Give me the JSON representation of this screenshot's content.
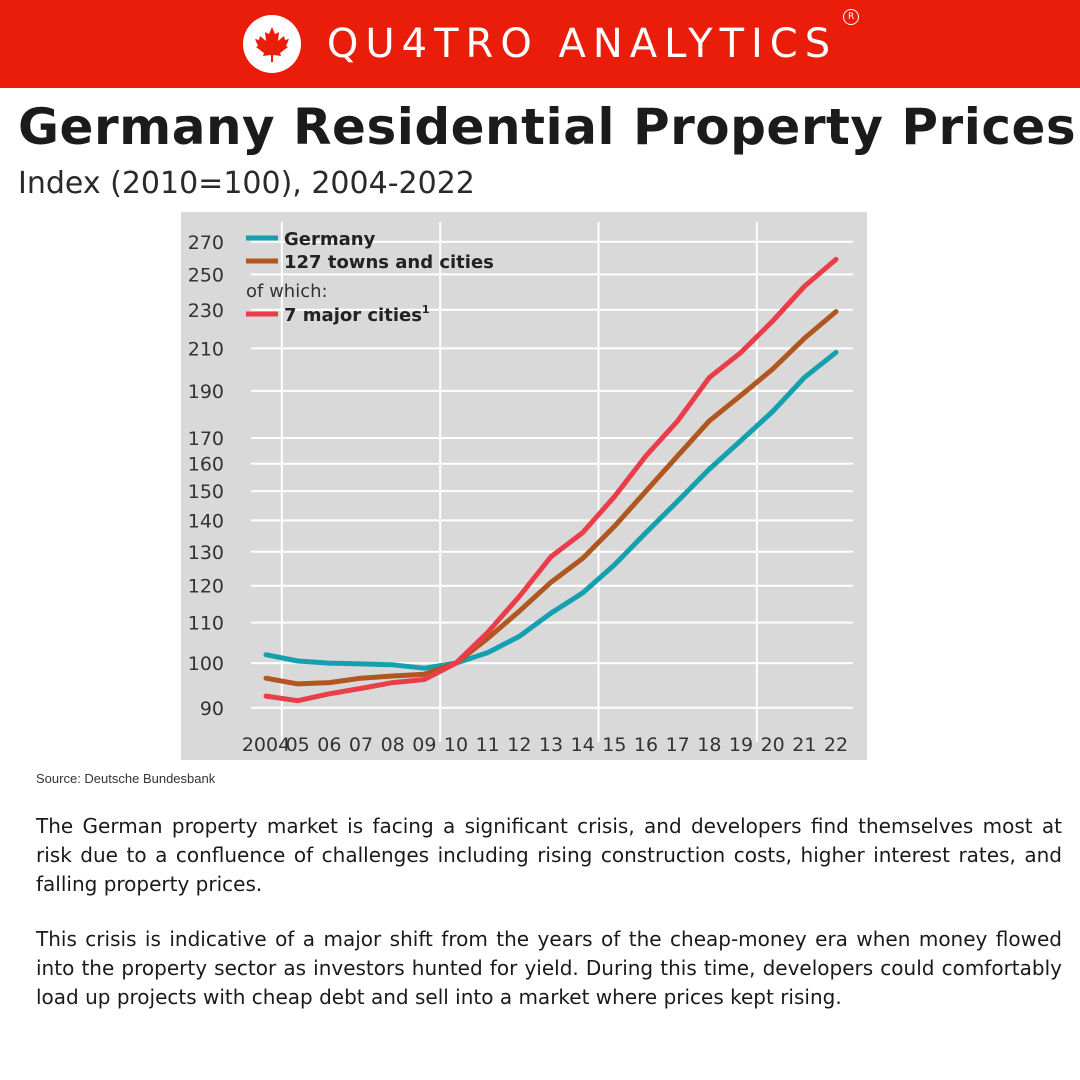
{
  "brand": {
    "name": "QU4TRO ANALYTICS",
    "registered": "R",
    "logo_icon": "maple-leaf-icon",
    "banner_color": "#ea1c0a"
  },
  "header": {
    "title": "Germany Residential Property Prices",
    "subtitle": "Index (2010=100), 2004-2022"
  },
  "chart_data": {
    "type": "line",
    "x_labels": [
      "2004",
      "05",
      "06",
      "07",
      "08",
      "09",
      "10",
      "11",
      "12",
      "13",
      "14",
      "15",
      "16",
      "17",
      "18",
      "19",
      "20",
      "21",
      "22"
    ],
    "x": [
      2004,
      2005,
      2006,
      2007,
      2008,
      2009,
      2010,
      2011,
      2012,
      2013,
      2014,
      2015,
      2016,
      2017,
      2018,
      2019,
      2020,
      2021,
      2022
    ],
    "y_ticks": [
      90,
      100,
      110,
      120,
      130,
      140,
      150,
      160,
      170,
      190,
      210,
      230,
      250,
      270
    ],
    "ylim": [
      85,
      275
    ],
    "y_scale": "log",
    "grid": true,
    "background": "#d9d9d9",
    "legend": {
      "position": "top-left",
      "note": "of which:",
      "entries": [
        {
          "label": "Germany",
          "color": "#15a0b0"
        },
        {
          "label": "127 towns and cities",
          "color": "#b1561e"
        },
        {
          "label": "7 major cities",
          "superscript": "1",
          "color": "#ea3d4a"
        }
      ]
    },
    "series": [
      {
        "name": "Germany",
        "color": "#15a0b0",
        "values": [
          102,
          100.5,
          100,
          99.8,
          99.6,
          98.8,
          100,
          102.5,
          106.5,
          112.5,
          118,
          126,
          136,
          146.5,
          158,
          169,
          181,
          196,
          208
        ]
      },
      {
        "name": "127 towns and cities",
        "color": "#b1561e",
        "values": [
          96.5,
          95.2,
          95.5,
          96.5,
          97,
          97.4,
          100,
          106,
          113,
          121,
          128,
          138,
          150,
          163,
          177,
          188,
          200,
          215,
          229
        ]
      },
      {
        "name": "7 major cities",
        "color": "#ea3d4a",
        "values": [
          92.5,
          91.5,
          93,
          94.2,
          95.5,
          96.2,
          100,
          107.5,
          117,
          128.5,
          136,
          148,
          163,
          177,
          196,
          208,
          224,
          243,
          259
        ]
      }
    ]
  },
  "source": "Source: Deutsche Bundesbank",
  "body": {
    "paragraph1": "The German property market is facing a significant crisis, and developers find themselves most at risk due to a confluence of challenges including rising construction costs, higher interest rates, and falling property prices.",
    "paragraph2": "This crisis is indicative of a major shift from the years of the cheap-money era when money flowed into the property sector as investors hunted for yield. During this time, developers could comfortably load up projects with cheap debt and sell into a market where prices kept rising."
  }
}
